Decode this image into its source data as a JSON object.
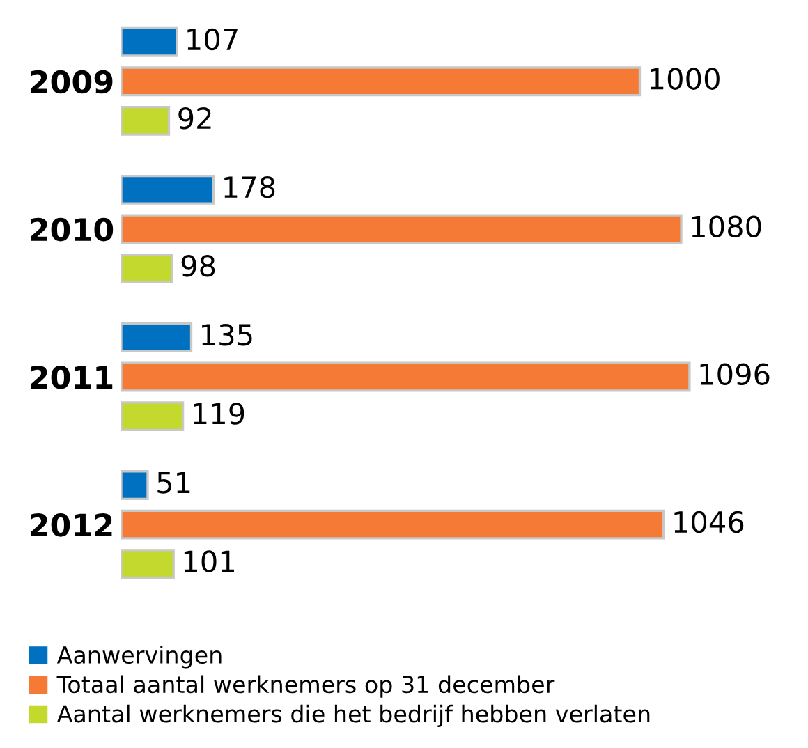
{
  "chart_data": {
    "type": "bar",
    "orientation": "horizontal",
    "categories": [
      "2009",
      "2010",
      "2011",
      "2012"
    ],
    "series": [
      {
        "name": "Aanwervingen",
        "color": "#0070c0",
        "values": [
          107,
          178,
          135,
          51
        ]
      },
      {
        "name": "Totaal aantal werknemers op 31 december",
        "color": "#f47a35",
        "values": [
          1000,
          1080,
          1096,
          1046
        ]
      },
      {
        "name": "Aantal werknemers die het bedrijf hebben verlaten",
        "color": "#c4d92e",
        "values": [
          92,
          98,
          119,
          101
        ]
      }
    ],
    "data_labels": true,
    "legend": "bottom left",
    "grid": false,
    "tick_labels": "y"
  }
}
